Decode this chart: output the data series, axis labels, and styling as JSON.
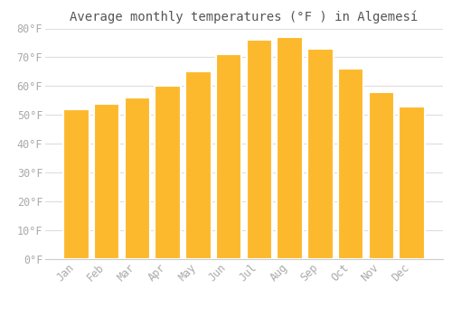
{
  "months": [
    "Jan",
    "Feb",
    "Mar",
    "Apr",
    "May",
    "Jun",
    "Jul",
    "Aug",
    "Sep",
    "Oct",
    "Nov",
    "Dec"
  ],
  "values": [
    52,
    54,
    56,
    60,
    65,
    71,
    76,
    77,
    73,
    66,
    58,
    53
  ],
  "bar_color_top": "#FDB92E",
  "bar_color_bottom": "#F5A800",
  "bar_edge_color": "#FFFFFF",
  "title": "Average monthly temperatures (°F ) in Algemesí",
  "ylim": [
    0,
    80
  ],
  "yticks": [
    0,
    10,
    20,
    30,
    40,
    50,
    60,
    70,
    80
  ],
  "ytick_labels": [
    "0°F",
    "10°F",
    "20°F",
    "30°F",
    "40°F",
    "50°F",
    "60°F",
    "70°F",
    "80°F"
  ],
  "background_color": "#FFFFFF",
  "grid_color": "#DDDDDD",
  "title_fontsize": 10,
  "tick_fontsize": 8.5,
  "tick_color": "#AAAAAA",
  "label_color": "#AAAAAA"
}
